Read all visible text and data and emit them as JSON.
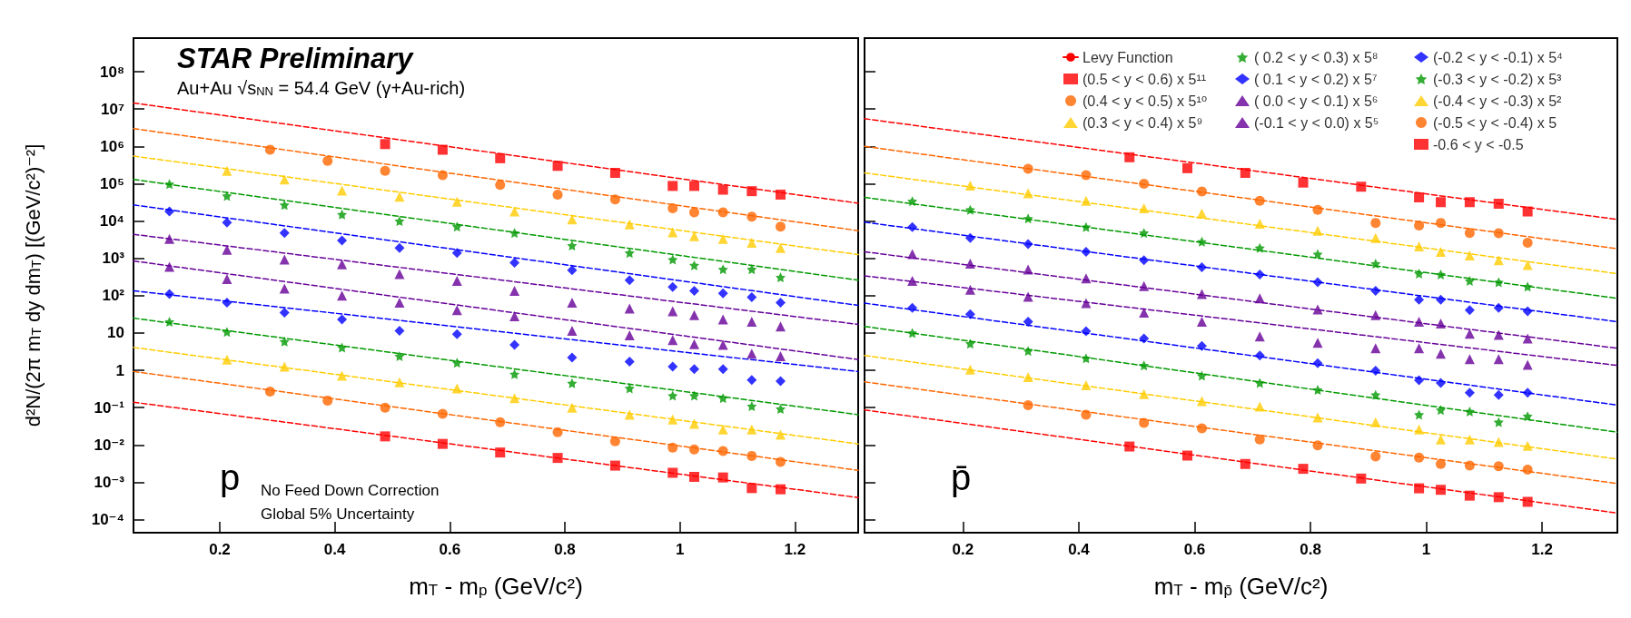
{
  "chart_data": [
    {
      "type": "scatter",
      "title": "STAR Preliminary",
      "subtitle": "Au+Au √s$_{NN}$ = 54.4 GeV (γ+Au-rich)",
      "xlabel": "m$_{T}$ - m$_{p}$ (GeV/c²)",
      "ylabel": "d²N/(2π m$_{T}$ dy dm$_{T}$) [(GeV/c²)⁻²]",
      "annotations": [
        "p",
        "No Feed Down Correction",
        "Global 5% Uncertainty"
      ],
      "log": "y",
      "grid": false,
      "legend": false,
      "xlim": [
        0.05,
        1.31
      ],
      "xticks": [
        0.2,
        0.4,
        0.6,
        0.8,
        1,
        1.2
      ],
      "ylim": [
        4.47e-05,
        794000000
      ],
      "yticks": [
        {
          "value": 0.0001,
          "label": "10⁻⁴"
        },
        {
          "value": 0.001,
          "label": "10⁻³"
        },
        {
          "value": 0.01,
          "label": "10⁻²"
        },
        {
          "value": 0.1,
          "label": "10⁻¹"
        },
        1,
        10,
        {
          "value": 100,
          "label": "10²"
        },
        {
          "value": 1000,
          "label": "10³"
        },
        {
          "value": 10000,
          "label": "10⁴"
        },
        {
          "value": 100000,
          "label": "10⁵"
        },
        {
          "value": 1000000,
          "label": "10⁶"
        },
        {
          "value": 10000000,
          "label": "10⁷"
        },
        {
          "value": 100000000,
          "label": "10⁸"
        }
      ],
      "series": [
        {
          "marker": "square",
          "color": "#ff0000",
          "x": [
            0.4875,
            0.5875,
            0.6875,
            0.7875,
            0.8875,
            0.9875,
            1.025,
            1.075,
            1.125,
            1.175
          ],
          "values": [
            1150000,
            810000,
            480000,
            300000,
            195000,
            87000,
            87000,
            69000,
            63000,
            51000
          ]
        },
        {
          "marker": "circle",
          "color": "#ff6600",
          "x": [
            0.2875,
            0.3875,
            0.4875,
            0.5875,
            0.6875,
            0.7875,
            0.8875,
            0.9875,
            1.025,
            1.075,
            1.125,
            1.175
          ],
          "values": [
            810000,
            410000,
            220000,
            170000,
            93000,
            51000,
            38000,
            22000,
            17000,
            17000,
            13000,
            7100
          ]
        },
        {
          "marker": "triangle",
          "color": "#ffcc00",
          "x": [
            0.2125,
            0.3125,
            0.4125,
            0.5125,
            0.6125,
            0.7125,
            0.8125,
            0.9125,
            0.9875,
            1.025,
            1.075,
            1.125,
            1.175
          ],
          "values": [
            220000,
            130000,
            65000,
            45000,
            33000,
            18000,
            11000,
            8100,
            5000,
            3900,
            3300,
            2600,
            1900
          ]
        },
        {
          "type": "scatter",
          "marker": "star",
          "color": "#009900",
          "x": [
            0.1125,
            0.2125,
            0.3125,
            0.4125,
            0.5125,
            0.6125,
            0.7125,
            0.8125,
            0.9125,
            0.9875,
            1.025,
            1.075,
            1.125,
            1.175
          ],
          "values": [
            98000,
            47000,
            27000,
            15000,
            10000,
            7100,
            4800,
            2200,
            1400,
            930,
            650,
            510,
            510,
            310
          ]
        },
        {
          "type": "scatter",
          "marker": "diamond",
          "color": "#0000ff",
          "x": [
            0.1125,
            0.2125,
            0.3125,
            0.4125,
            0.5125,
            0.6125,
            0.7125,
            0.8125,
            0.9125,
            0.9875,
            1.025,
            1.075,
            1.125,
            1.175
          ],
          "values": [
            18000,
            9100,
            4800,
            3000,
            1900,
            1400,
            760,
            480,
            260,
            170,
            135,
            115,
            91,
            65
          ]
        },
        {
          "type": "scatter",
          "marker": "triangle",
          "color": "#660099",
          "x": [
            0.1125,
            0.2125,
            0.3125,
            0.4125,
            0.5125,
            0.6125,
            0.7125,
            0.8125,
            0.9125,
            0.9875,
            1.025,
            1.075,
            1.125,
            1.175
          ],
          "values": [
            3300,
            1700,
            930,
            690,
            380,
            250,
            135,
            65,
            45,
            38,
            30,
            23,
            20,
            15
          ]
        },
        {
          "type": "scatter",
          "marker": "triangle",
          "color": "#660099",
          "x": [
            0.1125,
            0.2125,
            0.3125,
            0.4125,
            0.5125,
            0.6125,
            0.7125,
            0.8125,
            0.9125,
            0.9875,
            1.025,
            1.075,
            1.125,
            1.175
          ],
          "values": [
            590,
            280,
            155,
            100,
            65,
            41,
            28,
            11.5,
            8.7,
            6.5,
            5,
            4.8,
            2.8,
            2.4
          ]
        },
        {
          "type": "scatter",
          "marker": "diamond",
          "color": "#0000ff",
          "x": [
            0.1125,
            0.2125,
            0.3125,
            0.4125,
            0.5125,
            0.6125,
            0.7125,
            0.8125,
            0.9125,
            0.9875,
            1.025,
            1.075,
            1.125,
            1.175
          ],
          "values": [
            110,
            65,
            35,
            23,
            11.5,
            9.3,
            4.8,
            2.2,
            1.7,
            1.26,
            1.07,
            1.07,
            0.55,
            0.51
          ]
        },
        {
          "type": "scatter",
          "marker": "star",
          "color": "#009900",
          "x": [
            0.1125,
            0.2125,
            0.3125,
            0.4125,
            0.5125,
            0.6125,
            0.7125,
            0.8125,
            0.9125,
            0.9875,
            1.025,
            1.075,
            1.125,
            1.175
          ],
          "values": [
            20,
            10.7,
            5.9,
            4.1,
            2.4,
            1.6,
            0.79,
            0.45,
            0.33,
            0.21,
            0.21,
            0.18,
            0.11,
            0.093
          ]
        },
        {
          "type": "scatter",
          "marker": "triangle",
          "color": "#ffcc00",
          "x": [
            0.2125,
            0.3125,
            0.4125,
            0.5125,
            0.6125,
            0.7125,
            0.8125,
            0.9125,
            0.9875,
            1.025,
            1.075,
            1.125,
            1.175
          ],
          "values": [
            1.95,
            1.26,
            0.72,
            0.48,
            0.33,
            0.18,
            0.1,
            0.065,
            0.048,
            0.037,
            0.026,
            0.026,
            0.019
          ]
        },
        {
          "type": "scatter",
          "marker": "circle",
          "color": "#ff6600",
          "x": [
            0.2875,
            0.3875,
            0.4875,
            0.5875,
            0.6875,
            0.7875,
            0.8875,
            0.9875,
            1.025,
            1.075,
            1.125,
            1.175
          ],
          "values": [
            0.27,
            0.155,
            0.1,
            0.068,
            0.041,
            0.022,
            0.0126,
            0.0085,
            0.0076,
            0.0069,
            0.0051,
            0.0035
          ]
        },
        {
          "type": "scatter",
          "marker": "square",
          "color": "#ff0000",
          "x": [
            0.4875,
            0.5875,
            0.6875,
            0.7875,
            0.8875,
            0.9875,
            1.025,
            1.075,
            1.125,
            1.175
          ],
          "values": [
            0.017,
            0.0107,
            0.0063,
            0.0045,
            0.0028,
            0.0018,
            0.0014,
            0.00135,
            0.0007,
            0.00065
          ]
        },
        {
          "type": "line",
          "line_style": "dashed",
          "marker": "none",
          "color": "#ff0000",
          "x": [
            0.05,
            1.31
          ],
          "values": [
            14500000,
            30000
          ]
        },
        {
          "type": "line",
          "line_style": "dashed",
          "marker": "none",
          "color": "#ff6600",
          "x": [
            0.05,
            1.31
          ],
          "values": [
            3000000,
            5500
          ]
        },
        {
          "type": "line",
          "line_style": "dashed",
          "marker": "none",
          "color": "#ffcc00",
          "x": [
            0.05,
            1.31
          ],
          "values": [
            550000,
            1260
          ]
        },
        {
          "type": "line",
          "line_style": "dashed",
          "marker": "none",
          "color": "#009900",
          "x": [
            0.05,
            1.31
          ],
          "values": [
            130000,
            260
          ]
        },
        {
          "type": "line",
          "line_style": "dashed",
          "marker": "none",
          "color": "#0000ff",
          "x": [
            0.05,
            1.31
          ],
          "values": [
            27000,
            55
          ]
        },
        {
          "type": "line",
          "line_style": "dashed",
          "marker": "none",
          "color": "#660099",
          "x": [
            0.05,
            1.31
          ],
          "values": [
            4400,
            17
          ]
        },
        {
          "type": "line",
          "line_style": "dashed",
          "marker": "none",
          "color": "#660099",
          "x": [
            0.05,
            1.31
          ],
          "values": [
            850,
            1.95
          ]
        },
        {
          "type": "line",
          "line_style": "dashed",
          "marker": "none",
          "color": "#0000ff",
          "x": [
            0.05,
            1.31
          ],
          "values": [
            135,
            0.93
          ]
        },
        {
          "type": "line",
          "line_style": "dashed",
          "marker": "none",
          "color": "#009900",
          "x": [
            0.05,
            1.31
          ],
          "values": [
            25,
            0.065
          ]
        },
        {
          "type": "line",
          "line_style": "dashed",
          "marker": "none",
          "color": "#ffcc00",
          "x": [
            0.05,
            1.31
          ],
          "values": [
            4.1,
            0.0107
          ]
        },
        {
          "type": "line",
          "line_style": "dashed",
          "marker": "none",
          "color": "#ff6600",
          "x": [
            0.05,
            1.31
          ],
          "values": [
            0.93,
            0.0021
          ]
        },
        {
          "type": "line",
          "line_style": "dashed",
          "marker": "none",
          "color": "#ff0000",
          "x": [
            0.05,
            1.31
          ],
          "values": [
            0.14,
            0.00039
          ]
        }
      ]
    },
    {
      "type": "scatter",
      "xlabel": "m$_{T}$ - m$_{p̄}$ (GeV/c²)",
      "annotations": [
        "p̄"
      ],
      "log": "y",
      "grid": false,
      "legend": "top right",
      "tick_labels": "x",
      "xlim": [
        0.03,
        1.33
      ],
      "xticks": [
        0.2,
        0.4,
        0.6,
        0.8,
        1,
        1.2
      ],
      "ylim": [
        4.47e-05,
        794000000
      ],
      "yticks": [
        {
          "value": 0.0001,
          "label": null
        },
        {
          "value": 0.001,
          "label": null
        },
        {
          "value": 0.01,
          "label": null
        },
        {
          "value": 0.1,
          "label": null
        },
        {
          "value": 1,
          "label": null
        },
        {
          "value": 10,
          "label": null
        },
        {
          "value": 100,
          "label": null
        },
        {
          "value": 1000,
          "label": null
        },
        {
          "value": 10000,
          "label": null
        },
        {
          "value": 100000,
          "label": null
        },
        {
          "value": 1000000,
          "label": null
        },
        {
          "value": 10000000,
          "label": null
        },
        {
          "value": 100000000,
          "label": null
        }
      ],
      "series": [
        {
          "type": "line",
          "name": "Levy Function",
          "line_style": "dashed",
          "marker": "none",
          "color": "#ff0000",
          "x": [
            0.03,
            1.33
          ],
          "values": [
            5500000,
            11000
          ]
        },
        {
          "name": "(0.5 < y < 0.6) x 5¹¹",
          "marker": "square",
          "color": "#ff0000",
          "x": [
            0.4875,
            0.5875,
            0.6875,
            0.7875,
            0.8875,
            0.9875,
            1.025,
            1.075,
            1.125,
            1.175
          ],
          "values": [
            510000,
            260000,
            195000,
            107000,
            83000,
            43000,
            32000,
            32000,
            29000,
            18000
          ]
        },
        {
          "name": "(0.4 < y < 0.5) x 5¹⁰",
          "marker": "circle",
          "color": "#ff6600",
          "x": [
            0.3125,
            0.4125,
            0.5125,
            0.6125,
            0.7125,
            0.8125,
            0.9125,
            0.9875,
            1.025,
            1.075,
            1.125,
            1.175
          ],
          "values": [
            250000,
            170000,
            100000,
            62000,
            35000,
            20000,
            8900,
            7600,
            8900,
            4800,
            4700,
            2600
          ]
        },
        {
          "name": "(0.3 < y < 0.4) x 5⁹",
          "marker": "triangle",
          "color": "#ffcc00",
          "x": [
            0.2125,
            0.3125,
            0.4125,
            0.5125,
            0.6125,
            0.7125,
            0.8125,
            0.9125,
            0.9875,
            1.025,
            1.075,
            1.125,
            1.175
          ],
          "values": [
            89000,
            55000,
            35000,
            22000,
            16000,
            8500,
            5500,
            3500,
            2100,
            1500,
            1200,
            890,
            660
          ]
        },
        {
          "name": "( 0.2 < y < 0.3) x 5⁸",
          "marker": "star",
          "color": "#009900",
          "x": [
            0.1125,
            0.2125,
            0.3125,
            0.4125,
            0.5125,
            0.6125,
            0.7125,
            0.8125,
            0.9125,
            0.9875,
            1.025,
            1.075,
            1.125,
            1.175
          ],
          "values": [
            34000,
            20000,
            11700,
            6900,
            4800,
            2800,
            1900,
            1300,
            720,
            390,
            370,
            250,
            230,
            175
          ]
        },
        {
          "name": "( 0.1 < y < 0.2) x 5⁷",
          "marker": "diamond",
          "color": "#0000ff",
          "x": [
            0.1125,
            0.2125,
            0.3125,
            0.4125,
            0.5125,
            0.6125,
            0.7125,
            0.8125,
            0.9125,
            0.9875,
            1.025,
            1.075,
            1.125,
            1.175
          ],
          "values": [
            6900,
            3500,
            2400,
            1500,
            890,
            580,
            370,
            230,
            135,
            78,
            78,
            41,
            47,
            38
          ]
        },
        {
          "name": "( 0.0 < y < 0.1) x 5⁶",
          "marker": "triangle",
          "color": "#660099",
          "x": [
            0.1125,
            0.2125,
            0.3125,
            0.4125,
            0.5125,
            0.6125,
            0.7125,
            0.8125,
            0.9125,
            0.9875,
            1.025,
            1.075,
            1.125,
            1.175
          ],
          "values": [
            1300,
            720,
            500,
            290,
            180,
            110,
            85,
            43,
            30,
            20,
            18,
            9.5,
            8.9,
            7.1
          ]
        },
        {
          "name": "(-0.1 < y < 0.0) x 5⁵",
          "marker": "triangle",
          "color": "#660099",
          "x": [
            0.1125,
            0.2125,
            0.3125,
            0.4125,
            0.5125,
            0.6125,
            0.7125,
            0.8125,
            0.9125,
            0.9875,
            1.025,
            1.075,
            1.125,
            1.175
          ],
          "values": [
            250,
            145,
            93,
            63,
            35,
            20,
            8.1,
            5.5,
            3.9,
            3.9,
            2.8,
            2,
            2,
            1.4
          ]
        },
        {
          "name": "(-0.2 < y < -0.1) x 5⁴",
          "marker": "diamond",
          "color": "#0000ff",
          "x": [
            0.1125,
            0.2125,
            0.3125,
            0.4125,
            0.5125,
            0.6125,
            0.7125,
            0.8125,
            0.9125,
            0.9875,
            1.025,
            1.075,
            1.125,
            1.175
          ],
          "values": [
            47,
            32,
            20,
            11.2,
            7.1,
            4.5,
            2.5,
            1.55,
            0.98,
            0.54,
            0.46,
            0.25,
            0.22,
            0.25
          ]
        },
        {
          "name": "(-0.3 < y < -0.2) x 5³",
          "marker": "star",
          "color": "#009900",
          "x": [
            0.1125,
            0.2125,
            0.3125,
            0.4125,
            0.5125,
            0.6125,
            0.7125,
            0.8125,
            0.9125,
            0.9875,
            1.025,
            1.075,
            1.125,
            1.175
          ],
          "values": [
            10,
            5.2,
            3.3,
            2.1,
            1.35,
            0.72,
            0.46,
            0.3,
            0.22,
            0.065,
            0.087,
            0.079,
            0.041,
            0.059
          ]
        },
        {
          "name": "(-0.4 < y < -0.3) x 5²",
          "marker": "triangle",
          "color": "#ffcc00",
          "x": [
            0.2125,
            0.3125,
            0.4125,
            0.5125,
            0.6125,
            0.7125,
            0.8125,
            0.9125,
            0.9875,
            1.025,
            1.075,
            1.125,
            1.175
          ],
          "values": [
            1.05,
            0.66,
            0.4,
            0.23,
            0.15,
            0.107,
            0.055,
            0.041,
            0.026,
            0.014,
            0.014,
            0.012,
            0.0095
          ]
        },
        {
          "name": "(-0.5 < y < -0.4) x 5",
          "marker": "circle",
          "color": "#ff6600",
          "x": [
            0.3125,
            0.4125,
            0.5125,
            0.6125,
            0.7125,
            0.8125,
            0.9125,
            0.9875,
            1.025,
            1.075,
            1.125,
            1.175
          ],
          "values": [
            0.117,
            0.065,
            0.039,
            0.028,
            0.014,
            0.0098,
            0.0049,
            0.0046,
            0.0031,
            0.0028,
            0.0027,
            0.0022
          ]
        },
        {
          "name": "-0.6 < y < -0.5",
          "marker": "square",
          "color": "#ff0000",
          "x": [
            0.4875,
            0.5875,
            0.6875,
            0.7875,
            0.8875,
            0.9875,
            1.025,
            1.075,
            1.125,
            1.175
          ],
          "values": [
            0.0091,
            0.0052,
            0.0031,
            0.0023,
            0.00126,
            0.00069,
            0.00063,
            0.00044,
            0.0004,
            0.0003
          ]
        },
        {
          "type": "line",
          "line_style": "dashed",
          "marker": "none",
          "color": "#ff6600",
          "x": [
            0.03,
            1.33
          ],
          "values": [
            1000000,
            1800
          ]
        },
        {
          "type": "line",
          "line_style": "dashed",
          "marker": "none",
          "color": "#ffcc00",
          "x": [
            0.03,
            1.33
          ],
          "values": [
            195000,
            390
          ]
        },
        {
          "type": "line",
          "line_style": "dashed",
          "marker": "none",
          "color": "#009900",
          "x": [
            0.03,
            1.33
          ],
          "values": [
            43000,
            85
          ]
        },
        {
          "type": "line",
          "line_style": "dashed",
          "marker": "none",
          "color": "#0000ff",
          "x": [
            0.03,
            1.33
          ],
          "values": [
            9300,
            20
          ]
        },
        {
          "type": "line",
          "line_style": "dashed",
          "marker": "none",
          "color": "#660099",
          "x": [
            0.03,
            1.33
          ],
          "values": [
            1500,
            3.9
          ]
        },
        {
          "type": "line",
          "line_style": "dashed",
          "marker": "none",
          "color": "#660099",
          "x": [
            0.03,
            1.33
          ],
          "values": [
            340,
            1.35
          ]
        },
        {
          "type": "line",
          "line_style": "dashed",
          "marker": "none",
          "color": "#0000ff",
          "x": [
            0.03,
            1.33
          ],
          "values": [
            63,
            0.117
          ]
        },
        {
          "type": "line",
          "line_style": "dashed",
          "marker": "none",
          "color": "#009900",
          "x": [
            0.03,
            1.33
          ],
          "values": [
            15,
            0.022
          ]
        },
        {
          "type": "line",
          "line_style": "dashed",
          "marker": "none",
          "color": "#ffcc00",
          "x": [
            0.03,
            1.33
          ],
          "values": [
            2.5,
            0.0042
          ]
        },
        {
          "type": "line",
          "line_style": "dashed",
          "marker": "none",
          "color": "#ff6600",
          "x": [
            0.03,
            1.33
          ],
          "values": [
            0.49,
            0.00093
          ]
        },
        {
          "type": "line",
          "line_style": "dashed",
          "marker": "none",
          "color": "#ff0000",
          "x": [
            0.03,
            1.33
          ],
          "values": [
            0.087,
            0.00015
          ]
        }
      ]
    }
  ]
}
